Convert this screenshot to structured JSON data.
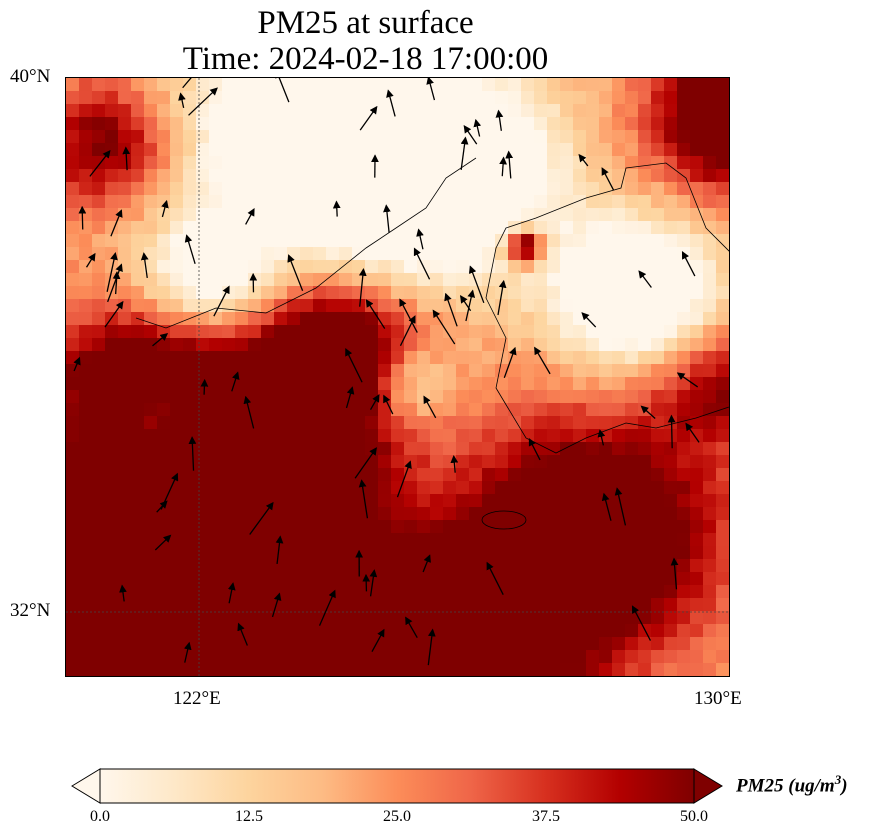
{
  "title": {
    "line1": "PM25 at surface",
    "line2": "Time: 2024-02-18 17:00:00"
  },
  "axes": {
    "lat_ticks": [
      "40°N",
      "32°N"
    ],
    "lon_ticks": [
      "122°E",
      "130°E"
    ],
    "lon_range": [
      120,
      130
    ],
    "lat_range": [
      31,
      40
    ]
  },
  "colorbar": {
    "label": "PM25 (ug/m",
    "label_sup": "3",
    "label_close": ")",
    "ticks": [
      "0.0",
      "12.5",
      "25.0",
      "37.5",
      "50.0"
    ],
    "range": [
      0,
      50
    ],
    "extend": "both",
    "colormap": [
      "#fff7ec",
      "#fee8c8",
      "#fdd49e",
      "#fdbb84",
      "#fc8d59",
      "#ef6548",
      "#d7301f",
      "#b30000",
      "#7f0000"
    ]
  }
}
